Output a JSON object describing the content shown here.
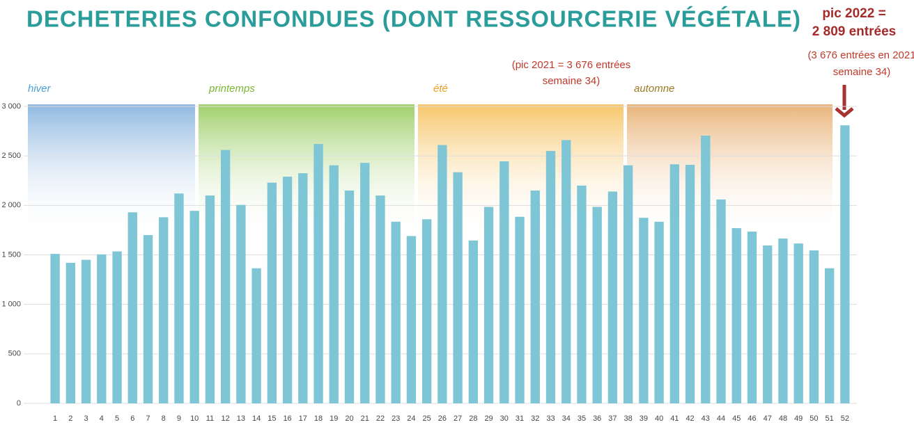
{
  "chart_data": {
    "type": "bar",
    "title": "DECHETERIES CONFONDUES (DONT RESSOURCERIE VÉGÉTALE)",
    "annotations": [
      {
        "lines": [
          "pic 2022 =",
          "2 809 entrées"
        ]
      },
      {
        "lines": [
          "(3 676 entrées en 2021",
          "semaine 34)"
        ]
      },
      {
        "lines": [
          "(pic 2021 = 3 676 entrées",
          "semaine 34)"
        ]
      }
    ],
    "seasons": [
      "hiver",
      "printemps",
      "été",
      "automne"
    ],
    "categories": [
      "1",
      "2",
      "3",
      "4",
      "5",
      "6",
      "7",
      "8",
      "9",
      "10",
      "11",
      "12",
      "13",
      "14",
      "15",
      "16",
      "17",
      "18",
      "19",
      "20",
      "21",
      "22",
      "23",
      "24",
      "25",
      "26",
      "27",
      "28",
      "29",
      "30",
      "31",
      "32",
      "33",
      "34",
      "35",
      "36",
      "37",
      "38",
      "39",
      "40",
      "41",
      "42",
      "43",
      "44",
      "45",
      "46",
      "47",
      "48",
      "49",
      "50",
      "51",
      "52"
    ],
    "values": [
      1510,
      1420,
      1450,
      1505,
      1535,
      1930,
      1700,
      1880,
      2120,
      1945,
      2100,
      2560,
      2005,
      1365,
      2230,
      2290,
      2325,
      2620,
      2405,
      2150,
      2430,
      2100,
      1835,
      1690,
      1860,
      2610,
      2335,
      1645,
      1985,
      2445,
      1885,
      2150,
      2550,
      2660,
      2200,
      1985,
      2140,
      2405,
      1875,
      1835,
      2415,
      2410,
      2705,
      2060,
      1770,
      1735,
      1595,
      1665,
      1615,
      1545,
      1365,
      2809
    ],
    "color": "#7ec6d6",
    "ylim": [
      0,
      3000
    ],
    "yticks": [
      0,
      500,
      {
        "value": 1000,
        "label": "1 000"
      },
      {
        "value": 1500,
        "label": "1 500"
      },
      {
        "value": 2000,
        "label": "2 000"
      },
      {
        "value": 2500,
        "label": "2 500"
      },
      {
        "value": 3000,
        "label": "3 000"
      }
    ],
    "grid": true
  }
}
